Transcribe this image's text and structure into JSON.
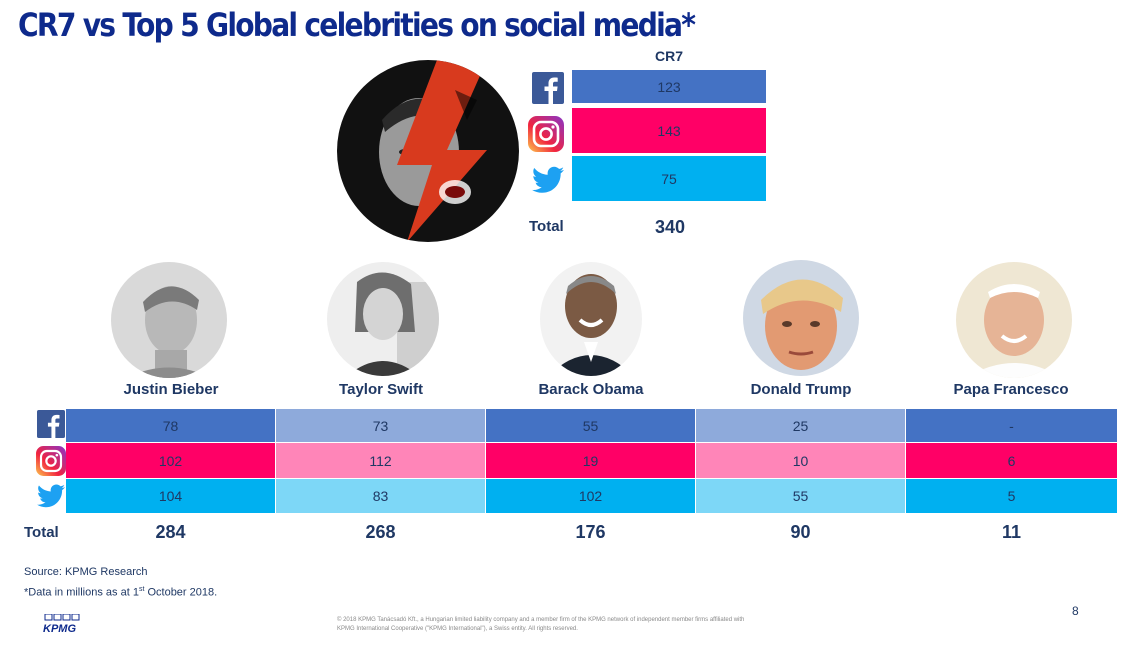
{
  "title": "CR7 vs Top 5 Global celebrities on social media*",
  "colors": {
    "facebook": "#4472c4",
    "instagram": "#ff0066",
    "twitter": "#00b0f0",
    "facebook_light": "#8eaadb",
    "instagram_light": "#ff85b8",
    "twitter_light": "#7dd7f7",
    "text": "#1f3864"
  },
  "icons": [
    "facebook-icon",
    "instagram-icon",
    "twitter-icon"
  ],
  "cr7": {
    "header": "CR7",
    "facebook": "123",
    "instagram": "143",
    "twitter": "75",
    "total_label": "Total",
    "total": "340"
  },
  "celebrities": [
    {
      "name": "Justin Bieber",
      "facebook": "78",
      "instagram": "102",
      "twitter": "104",
      "total": "284"
    },
    {
      "name": "Taylor Swift",
      "facebook": "73",
      "instagram": "112",
      "twitter": "83",
      "total": "268"
    },
    {
      "name": "Barack Obama",
      "facebook": "55",
      "instagram": "19",
      "twitter": "102",
      "total": "176"
    },
    {
      "name": "Donald Trump",
      "facebook": "25",
      "instagram": "10",
      "twitter": "55",
      "total": "90"
    },
    {
      "name": "Papa Francesco",
      "facebook": "-",
      "instagram": "6",
      "twitter": "5",
      "total": "11"
    }
  ],
  "table_total_label": "Total",
  "chart_data": {
    "type": "table",
    "title": "CR7 vs Top 5 Global celebrities on social media*",
    "columns": [
      "CR7",
      "Justin Bieber",
      "Taylor Swift",
      "Barack Obama",
      "Donald Trump",
      "Papa Francesco"
    ],
    "series": [
      {
        "name": "Facebook",
        "values": [
          123,
          78,
          73,
          55,
          25,
          null
        ]
      },
      {
        "name": "Instagram",
        "values": [
          143,
          102,
          112,
          19,
          10,
          6
        ]
      },
      {
        "name": "Twitter",
        "values": [
          75,
          104,
          83,
          102,
          55,
          5
        ]
      },
      {
        "name": "Total",
        "values": [
          340,
          284,
          268,
          176,
          90,
          11
        ]
      }
    ]
  },
  "source": "Source: KPMG Research",
  "note_prefix": "*Data in millions as at 1",
  "note_sup": "st",
  "note_suffix": " October 2018.",
  "footer_line1": "© 2018 KPMG Tanácsadó Kft., a Hungarian limited liability company and a member firm of the KPMG network of independent member firms affiliated with",
  "footer_line2": "KPMG International Cooperative (\"KPMG International\"), a Swiss entity. All rights reserved.",
  "page_number": "8",
  "logo_text": "KPMG"
}
